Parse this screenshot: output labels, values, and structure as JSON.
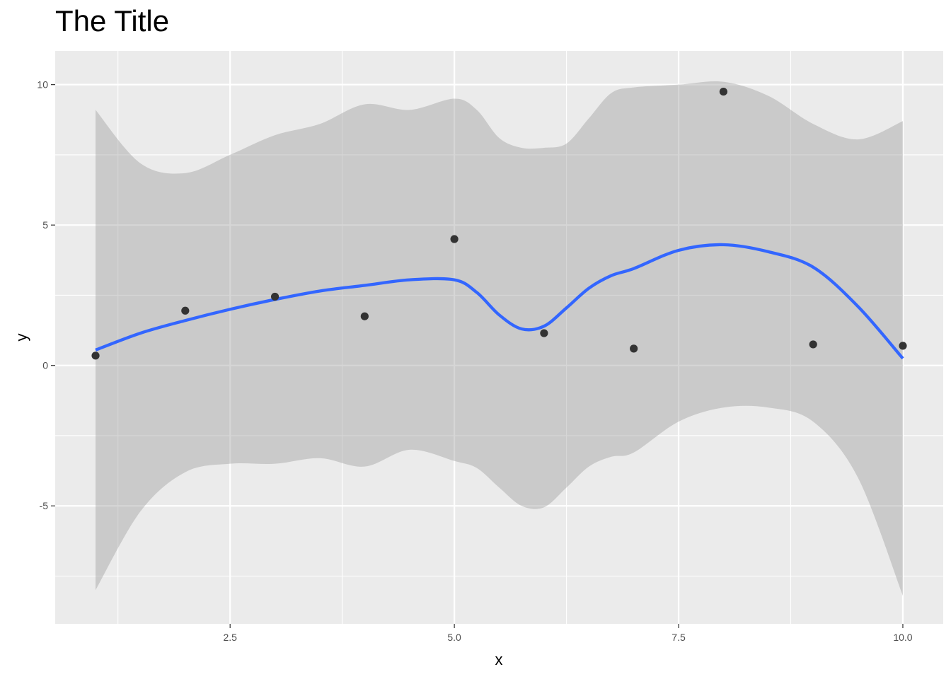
{
  "chart_data": {
    "type": "scatter",
    "title": "The Title",
    "xlabel": "x",
    "ylabel": "y",
    "xlim": [
      0.55,
      10.45
    ],
    "ylim": [
      -9.2,
      11.2
    ],
    "x_major_ticks": [
      2.5,
      5.0,
      7.5,
      10.0
    ],
    "x_tick_labels": [
      "2.5",
      "5.0",
      "7.5",
      "10.0"
    ],
    "x_minor_ticks": [
      1.25,
      3.75,
      6.25,
      8.75
    ],
    "y_major_ticks": [
      -5,
      0,
      5,
      10
    ],
    "y_tick_labels": [
      "-5",
      "0",
      "5",
      "10"
    ],
    "y_minor_ticks": [
      -7.5,
      -2.5,
      2.5,
      7.5
    ],
    "grid": true,
    "points": {
      "x": [
        1,
        2,
        3,
        4,
        5,
        6,
        7,
        8,
        9,
        10
      ],
      "y": [
        0.35,
        1.95,
        2.45,
        1.75,
        4.5,
        1.15,
        0.6,
        9.75,
        0.75,
        0.7
      ],
      "color": "#333333"
    },
    "smooth": {
      "method": "loess",
      "color": "#3366FF",
      "ribbon_color": "#999999",
      "x": [
        1,
        1.5,
        2,
        2.5,
        3,
        3.5,
        4,
        4.5,
        5,
        5.25,
        5.5,
        5.75,
        6,
        6.25,
        6.5,
        6.75,
        7,
        7.5,
        8,
        8.5,
        9,
        9.5,
        10
      ],
      "y": [
        0.55,
        1.15,
        1.6,
        2.0,
        2.35,
        2.65,
        2.85,
        3.05,
        3.05,
        2.6,
        1.8,
        1.3,
        1.4,
        2.05,
        2.75,
        3.2,
        3.45,
        4.1,
        4.3,
        4.05,
        3.5,
        2.1,
        0.25
      ],
      "ymin": [
        -8.0,
        -5.2,
        -3.8,
        -3.5,
        -3.5,
        -3.3,
        -3.6,
        -3.0,
        -3.4,
        -3.65,
        -4.35,
        -5.0,
        -5.05,
        -4.35,
        -3.6,
        -3.25,
        -3.1,
        -2.0,
        -1.5,
        -1.5,
        -2.0,
        -4.0,
        -8.2
      ],
      "ymax": [
        9.1,
        7.2,
        6.85,
        7.5,
        8.2,
        8.6,
        9.3,
        9.1,
        9.5,
        9.1,
        8.1,
        7.75,
        7.75,
        7.9,
        8.8,
        9.7,
        9.9,
        10.0,
        10.1,
        9.6,
        8.6,
        8.05,
        8.7
      ]
    }
  }
}
